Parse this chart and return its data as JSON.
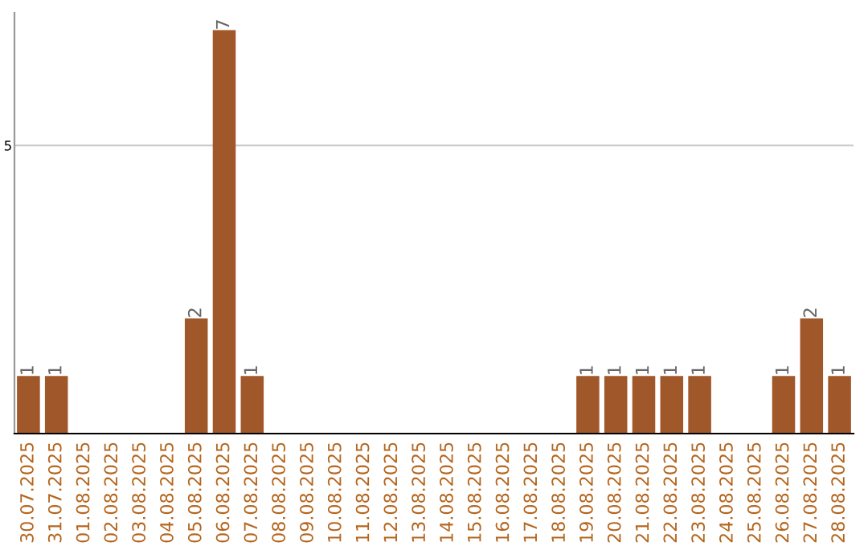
{
  "chart_data": {
    "type": "bar",
    "categories": [
      "30.07.2025",
      "31.07.2025",
      "01.08.2025",
      "02.08.2025",
      "03.08.2025",
      "04.08.2025",
      "05.08.2025",
      "06.08.2025",
      "07.08.2025",
      "08.08.2025",
      "09.08.2025",
      "10.08.2025",
      "11.08.2025",
      "12.08.2025",
      "13.08.2025",
      "14.08.2025",
      "15.08.2025",
      "16.08.2025",
      "17.08.2025",
      "18.08.2025",
      "19.08.2025",
      "20.08.2025",
      "21.08.2025",
      "22.08.2025",
      "23.08.2025",
      "24.08.2025",
      "25.08.2025",
      "26.08.2025",
      "27.08.2025",
      "28.08.2025"
    ],
    "values": [
      1,
      1,
      0,
      0,
      0,
      0,
      2,
      7,
      1,
      0,
      0,
      0,
      0,
      0,
      0,
      0,
      0,
      0,
      0,
      0,
      1,
      1,
      1,
      1,
      1,
      0,
      0,
      1,
      2,
      1
    ],
    "value_labels": [
      "1",
      "1",
      null,
      null,
      null,
      null,
      "2",
      "7",
      "1",
      null,
      null,
      null,
      null,
      null,
      null,
      null,
      null,
      null,
      null,
      null,
      "1",
      "1",
      "1",
      "1",
      "1",
      null,
      null,
      "1",
      "2",
      "1"
    ],
    "color": "#a0572a",
    "ylim": [
      0,
      7.3
    ],
    "yticks": [
      5
    ],
    "grid": "y"
  }
}
